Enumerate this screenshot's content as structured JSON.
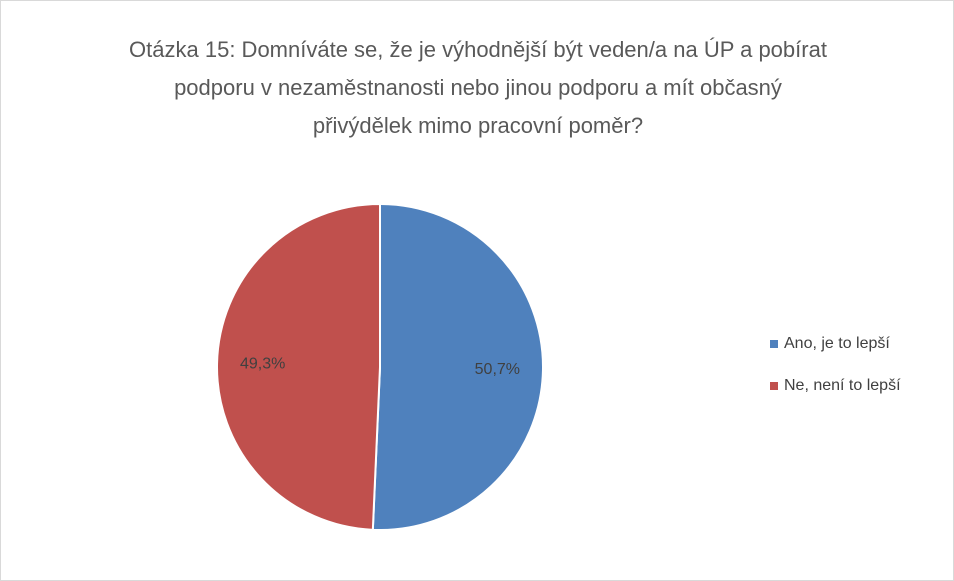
{
  "chart_data": {
    "type": "pie",
    "title": "Otázka 15: Domníváte se, že je výhodnější být veden/a na ÚP a pobírat podporu v nezaměstnanosti nebo jinou podporu a mít občasný přivýdělek mimo pracovní poměr?",
    "categories": [
      "Ano, je to lepší",
      "Ne, není to lepší"
    ],
    "values": [
      50.7,
      49.3
    ],
    "value_labels": [
      "50,7%",
      "49,3%"
    ],
    "colors": [
      "#4f81bd",
      "#c0504d"
    ],
    "legend": "right"
  }
}
